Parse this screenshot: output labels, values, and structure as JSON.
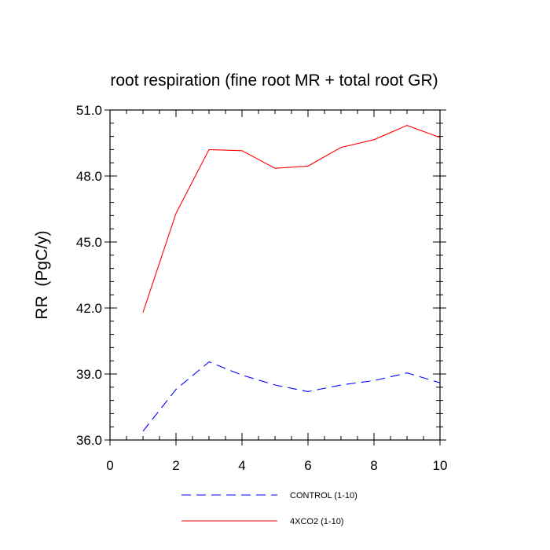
{
  "chart_data": {
    "type": "line",
    "title": "root respiration (fine root MR + total root GR)",
    "xlabel": "",
    "ylabel": "RR  (PgC/y)",
    "xlim": [
      0,
      10
    ],
    "ylim": [
      36.0,
      51.0
    ],
    "x_ticks": [
      0,
      2,
      4,
      6,
      8,
      10
    ],
    "x_tick_labels": [
      "0",
      "2",
      "4",
      "6",
      "8",
      "10"
    ],
    "y_ticks": [
      36.0,
      39.0,
      42.0,
      45.0,
      48.0,
      51.0
    ],
    "y_tick_labels": [
      "36.0",
      "39.0",
      "42.0",
      "45.0",
      "48.0",
      "51.0"
    ],
    "x": [
      1,
      2,
      3,
      4,
      5,
      6,
      7,
      8,
      9,
      10
    ],
    "series": [
      {
        "name": "CONTROL (1-10)",
        "color": "#0000ff",
        "dash": "dashed",
        "values": [
          36.4,
          38.3,
          39.55,
          38.95,
          38.5,
          38.2,
          38.5,
          38.7,
          39.05,
          38.6
        ]
      },
      {
        "name": "4XCO2 (1-10)",
        "color": "#ff0000",
        "dash": "solid",
        "values": [
          41.8,
          46.3,
          49.2,
          49.15,
          48.35,
          48.45,
          49.3,
          49.65,
          50.3,
          49.75
        ]
      }
    ],
    "legend_position": "bottom"
  }
}
